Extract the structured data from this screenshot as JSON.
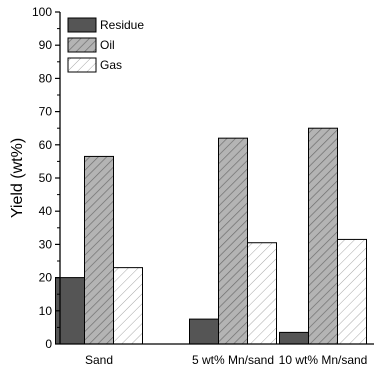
{
  "chart_data": {
    "type": "bar",
    "title": "",
    "xlabel": "",
    "ylabel": "Yield (wt%)",
    "ylim": [
      0,
      100
    ],
    "yticks": [
      0,
      10,
      20,
      30,
      40,
      50,
      60,
      70,
      80,
      90,
      100
    ],
    "categories": [
      "Sand",
      "5 wt% Mn/sand",
      "10 wt% Mn/sand"
    ],
    "series": [
      {
        "name": "Residue",
        "values": [
          20,
          7.5,
          3.5
        ],
        "fill": "#555555",
        "pattern": "solid"
      },
      {
        "name": "Oil",
        "values": [
          56.5,
          62,
          65
        ],
        "fill": "#b4b4b4",
        "pattern": "hatch-dense"
      },
      {
        "name": "Gas",
        "values": [
          23,
          30.5,
          31.5
        ],
        "fill": "#ffffff",
        "pattern": "hatch-light"
      }
    ],
    "legend_position": "top-left",
    "grid": false
  }
}
